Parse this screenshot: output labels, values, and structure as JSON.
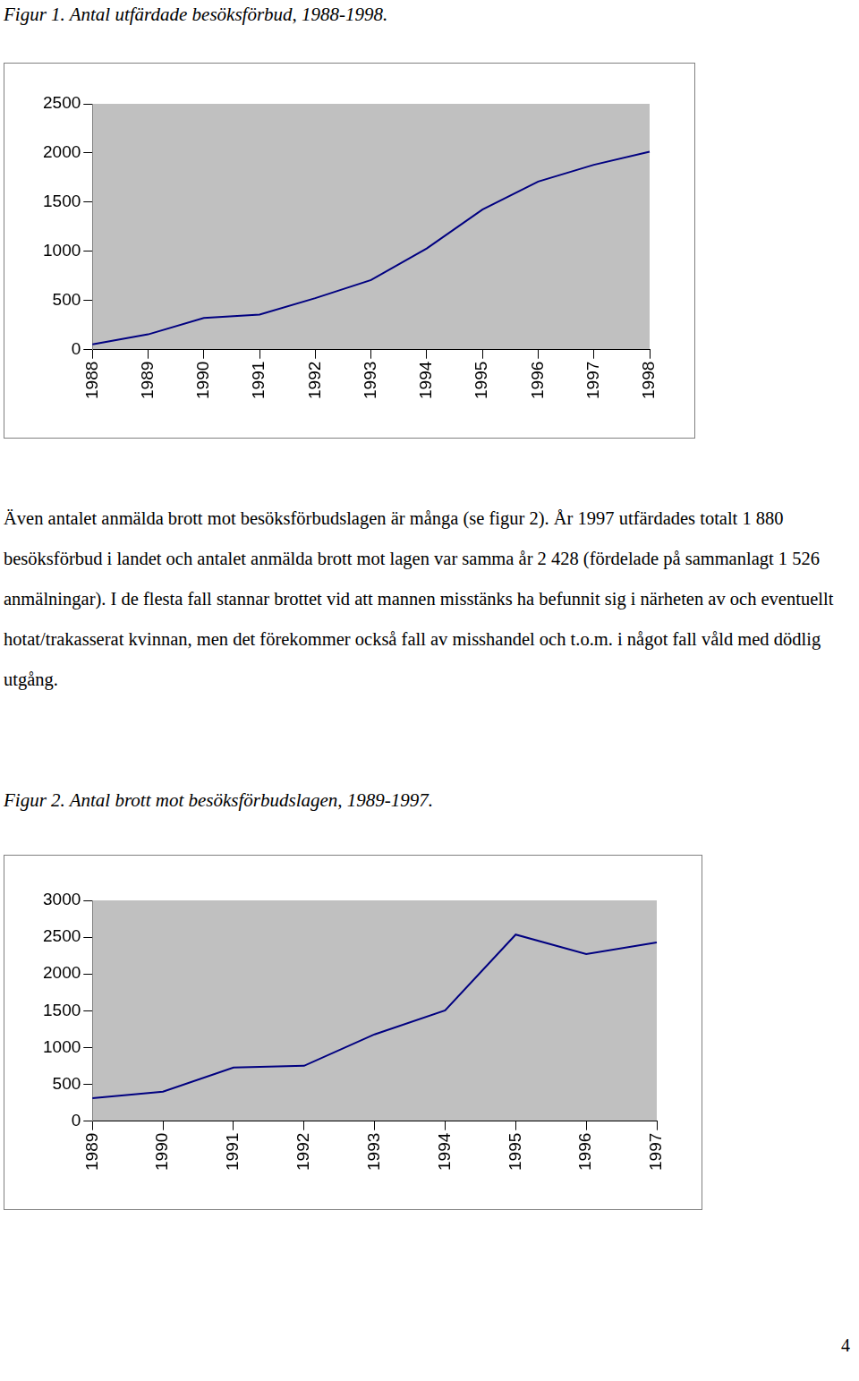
{
  "chart_data": [
    {
      "type": "line",
      "title": "Figur 1. Antal utfärdade besöksförbud, 1988-1998.",
      "categories": [
        "1988",
        "1989",
        "1990",
        "1991",
        "1992",
        "1993",
        "1994",
        "1995",
        "1996",
        "1997",
        "1998"
      ],
      "values": [
        55,
        156,
        322,
        358,
        524,
        708,
        1029,
        1425,
        1710,
        1880,
        2013
      ],
      "color": "#000080",
      "marker": "none",
      "ylim": [
        0,
        2500
      ],
      "yticks": [
        0,
        500,
        1000,
        1500,
        2000,
        2500
      ],
      "grid": false
    },
    {
      "type": "line",
      "title": "Figur 2. Antal brott mot besöksförbudslagen, 1989-1997.",
      "categories": [
        "1989",
        "1990",
        "1991",
        "1992",
        "1993",
        "1994",
        "1995",
        "1996",
        "1997"
      ],
      "values": [
        314,
        402,
        728,
        753,
        1180,
        1506,
        2535,
        2272,
        2428
      ],
      "color": "#000080",
      "marker": "none",
      "ylim": [
        0,
        3000
      ],
      "yticks": [
        0,
        500,
        1000,
        1500,
        2000,
        2500,
        3000
      ],
      "grid": false
    }
  ],
  "document": {
    "paragraph": "Även antalet anmälda brott mot besöksförbudslagen är många (se figur 2). År 1997 utfärdades totalt 1 880 besöksförbud i landet och antalet anmälda brott mot lagen var samma år 2 428 (fördelade på sammanlagt 1 526 anmälningar). I de flesta fall stannar brottet vid att mannen misstänks ha befunnit sig i närheten av och eventuellt hotat/trakasserat kvinnan, men det förekommer också fall av misshandel och t.o.m. i något fall våld med dödlig utgång.",
    "page_number": 4
  }
}
